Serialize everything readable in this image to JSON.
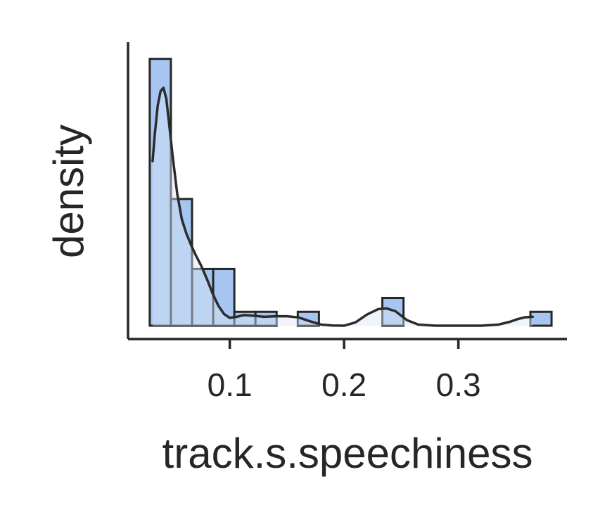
{
  "chart_data": {
    "type": "histogram",
    "xlabel": "track.s.speechiness",
    "ylabel": "density",
    "xlim": [
      0.011,
      0.395
    ],
    "ylim": [
      -1.2,
      25.5
    ],
    "x_ticks": [
      0.1,
      0.2,
      0.3
    ],
    "x_tick_labels": [
      "0.1",
      "0.2",
      "0.3"
    ],
    "y_ticks_shown": false,
    "grid": false,
    "bin_width": 0.0185,
    "bins": [
      {
        "x0": 0.03,
        "x1": 0.0485,
        "density": 24.0
      },
      {
        "x0": 0.0485,
        "x1": 0.067,
        "density": 11.4
      },
      {
        "x0": 0.067,
        "x1": 0.0855,
        "density": 5.1
      },
      {
        "x0": 0.0855,
        "x1": 0.104,
        "density": 5.1
      },
      {
        "x0": 0.104,
        "x1": 0.1225,
        "density": 1.25
      },
      {
        "x0": 0.1225,
        "x1": 0.141,
        "density": 1.25
      },
      {
        "x0": 0.141,
        "x1": 0.1595,
        "density": 0
      },
      {
        "x0": 0.1595,
        "x1": 0.178,
        "density": 1.25
      },
      {
        "x0": 0.178,
        "x1": 0.1965,
        "density": 0
      },
      {
        "x0": 0.1965,
        "x1": 0.215,
        "density": 0
      },
      {
        "x0": 0.215,
        "x1": 0.2335,
        "density": 0
      },
      {
        "x0": 0.2335,
        "x1": 0.252,
        "density": 2.5
      },
      {
        "x0": 0.252,
        "x1": 0.2705,
        "density": 0
      },
      {
        "x0": 0.2705,
        "x1": 0.289,
        "density": 0
      },
      {
        "x0": 0.289,
        "x1": 0.3075,
        "density": 0
      },
      {
        "x0": 0.3075,
        "x1": 0.326,
        "density": 0
      },
      {
        "x0": 0.326,
        "x1": 0.3445,
        "density": 0
      },
      {
        "x0": 0.3445,
        "x1": 0.363,
        "density": 0
      },
      {
        "x0": 0.363,
        "x1": 0.3815,
        "density": 1.25
      }
    ],
    "kde": {
      "x": [
        0.0325,
        0.0345,
        0.037,
        0.0395,
        0.042,
        0.0445,
        0.047,
        0.05,
        0.054,
        0.058,
        0.062,
        0.066,
        0.07,
        0.075,
        0.08,
        0.085,
        0.09,
        0.095,
        0.1,
        0.106,
        0.112,
        0.12,
        0.13,
        0.14,
        0.15,
        0.16,
        0.17,
        0.18,
        0.19,
        0.2,
        0.21,
        0.22,
        0.23,
        0.2375,
        0.245,
        0.255,
        0.265,
        0.28,
        0.3,
        0.32,
        0.335,
        0.345,
        0.352,
        0.358,
        0.365
      ],
      "y": [
        14.8,
        17.3,
        19.8,
        21.1,
        21.4,
        20.4,
        18.1,
        15.3,
        11.9,
        9.6,
        8.3,
        7.3,
        6.4,
        5.4,
        4.2,
        2.9,
        1.8,
        1.05,
        0.7,
        0.8,
        0.95,
        0.9,
        0.8,
        0.85,
        0.85,
        0.75,
        0.4,
        0.1,
        0.02,
        0.0,
        0.3,
        1.0,
        1.5,
        1.55,
        1.3,
        0.5,
        0.1,
        0.0,
        0.0,
        0.0,
        0.1,
        0.35,
        0.6,
        0.75,
        0.8
      ]
    },
    "colors": {
      "bar_fill": "#a6c6f1",
      "bar_edge": "#262626",
      "kde_fill": "#dbe5f6",
      "kde_line": "#2b2b2b",
      "axis": "#262626"
    }
  }
}
